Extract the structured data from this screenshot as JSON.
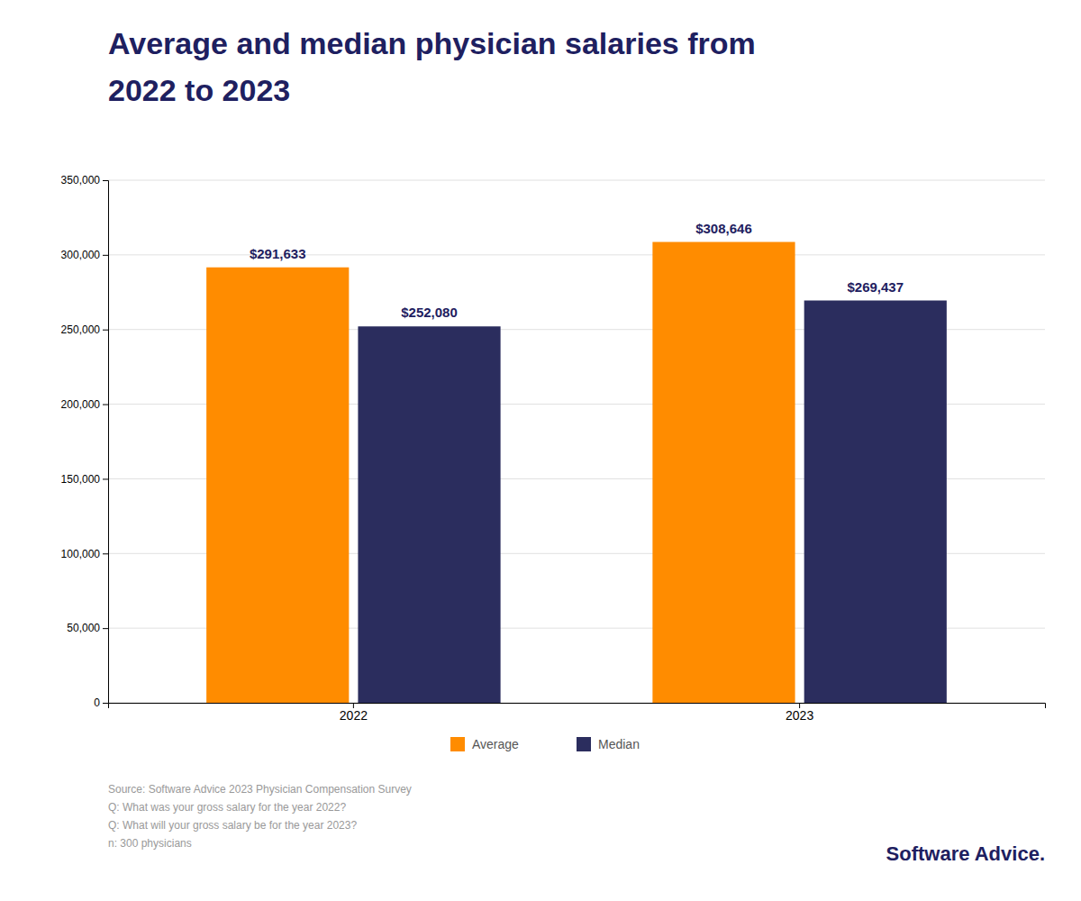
{
  "chart_data": {
    "type": "bar",
    "title": "Average and median physician salaries from\n2022 to 2023",
    "categories": [
      "2022",
      "2023"
    ],
    "series": [
      {
        "name": "Average",
        "color": "#FF8C00",
        "values": [
          291633,
          308646
        ],
        "value_labels": [
          "$291,633",
          "$308,646"
        ]
      },
      {
        "name": "Median",
        "color": "#2b2d5e",
        "values": [
          252080,
          269437
        ],
        "value_labels": [
          "$252,080",
          "$269,437"
        ]
      }
    ],
    "ylim": [
      0,
      350000
    ],
    "yticks": [
      0,
      {
        "value": 50000,
        "label": "50,000"
      },
      {
        "value": 100000,
        "label": "100,000"
      },
      {
        "value": 150000,
        "label": "150,000"
      },
      {
        "value": 200000,
        "label": "200,000"
      },
      {
        "value": 250000,
        "label": "250,000"
      },
      {
        "value": 300000,
        "label": "300,000"
      },
      {
        "value": 350000,
        "label": "350,000"
      }
    ],
    "grid": true,
    "legend": "bottom",
    "data_labels": true,
    "annotations": [
      "Source: Software Advice 2023 Physician Compensation Survey",
      "Q: What was your gross salary for the year 2022?",
      "Q: What will your gross salary be for the year 2023?",
      "n: 300 physicians",
      "Software Advice."
    ]
  }
}
